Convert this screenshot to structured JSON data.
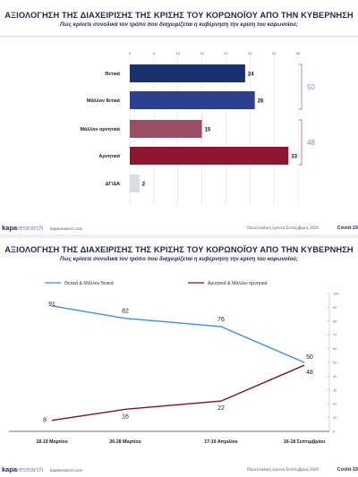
{
  "slide1": {
    "title": "ΑΞΙΟΛΟΓΗΣΗ ΤΗΣ ΔΙΑΧΕΙΡΙΣΗΣ ΤΗΣ ΚΡΙΣΗΣ ΤΟΥ ΚΟΡΩΝΟΪΟΥ ΑΠΟ ΤΗΝ ΚΥΒΕΡΝΗΣΗ",
    "subtitle": "Πώς κρίνετε συνολικά τον τρόπο που διαχειρίζεται η κυβέρνηση την κρίση του κορωνοϊού;"
  },
  "slide2": {
    "title": "ΑΞΙΟΛΟΓΗΣΗ ΤΗΣ ΔΙΑΧΕΙΡΙΣΗΣ ΤΗΣ ΚΡΙΣΗΣ ΤΟΥ ΚΟΡΩΝΟΪΟΥ ΑΠΟ ΤΗΝ ΚΥΒΕΡΝΗΣΗ",
    "subtitle": "Πώς κρίνετε συνολικά τον τρόπο που διαχειρίζεται η κυβέρνηση την κρίση του κορωνοϊού;"
  },
  "footer": {
    "logo_primary": "kapa",
    "logo_secondary": "research",
    "site": "kaparesearch.com",
    "survey": "Πανελλαδική έρευνα Σεπτέμβριος 2020",
    "tag": "Covid-19"
  },
  "colors": {
    "navy": "#1c2f6e",
    "blue": "#2e3f8f",
    "mauve": "#9a4e63",
    "maroon": "#8e1630",
    "grey": "#d7dde0",
    "bracket_blue": "#7f95bd",
    "bracket_pink": "#b07a88",
    "line_positive": "#3f8fdc",
    "line_negative": "#7d1422"
  },
  "chart_data": [
    {
      "type": "bar",
      "orientation": "horizontal",
      "categories": [
        "Θετικά",
        "Μάλλον θετικά",
        "Μάλλον αρνητικά",
        "Αρνητικά",
        "ΔΓ/ΔΑ"
      ],
      "values": [
        24,
        26,
        15,
        33,
        2
      ],
      "xlim": [
        0,
        35
      ],
      "xticks": [
        0,
        5,
        10,
        15,
        20,
        25,
        30,
        35
      ],
      "grid": true,
      "groups": [
        {
          "label": "50",
          "members": [
            "Θετικά",
            "Μάλλον θετικά"
          ]
        },
        {
          "label": "48",
          "members": [
            "Μάλλον αρνητικά",
            "Αρνητικά"
          ]
        }
      ]
    },
    {
      "type": "line",
      "x": [
        "18-19 Μαρτίου",
        "26-28 Μαρτίου",
        "17-19 Απριλίου",
        "16-18 Σεπτεμβρίου"
      ],
      "series": [
        {
          "name": "Θετικά & Μάλλον θετικά",
          "values": [
            91,
            82,
            76,
            50
          ]
        },
        {
          "name": "Αρνητικά & Μάλλον αρνητικά",
          "values": [
            8,
            16,
            22,
            48
          ]
        }
      ],
      "ylim": [
        0,
        100
      ],
      "yticks": [
        0,
        10,
        20,
        30,
        40,
        50,
        60,
        70,
        80,
        90,
        100
      ],
      "grid": false,
      "legend": "top"
    }
  ]
}
